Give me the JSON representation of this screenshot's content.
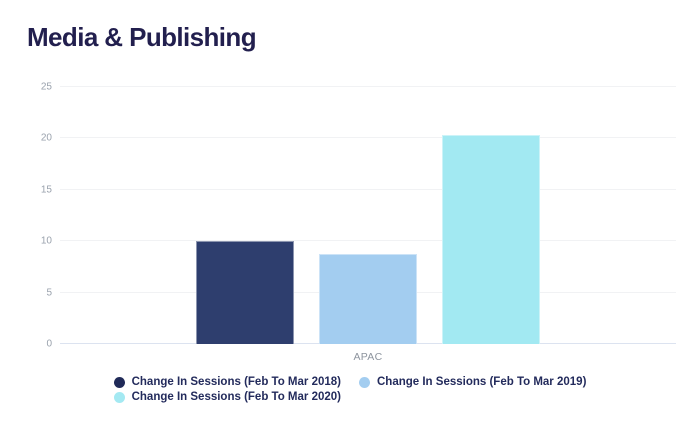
{
  "title": "Media & Publishing",
  "colors": {
    "title_text": "#221f4e",
    "legend_text": "#232b5c",
    "tick_text": "#9aa2ad",
    "category_text": "#8d949e",
    "gridline": "#f1f2f4",
    "axis_line": "#dce3f0",
    "background": "#ffffff"
  },
  "chart_data": {
    "type": "bar",
    "title": "Media & Publishing",
    "categories": [
      "APAC"
    ],
    "series": [
      {
        "name": "Change In Sessions (Feb To Mar 2018)",
        "values": [
          10
        ],
        "color": "#2e3e6e",
        "marker_color": "#202a58"
      },
      {
        "name": "Change In Sessions (Feb To Mar 2019)",
        "values": [
          8.8
        ],
        "color": "#a3cdf0",
        "marker_color": "#a3cdf0"
      },
      {
        "name": "Change In Sessions (Feb To Mar 2020)",
        "values": [
          20.3
        ],
        "color": "#a2e9f2",
        "marker_color": "#a4e9f2"
      }
    ],
    "xlabel": "",
    "ylabel": "",
    "ylim": [
      0,
      25
    ],
    "yticks": [
      0,
      5,
      10,
      15,
      20,
      25
    ],
    "grid": true,
    "legend_position": "bottom",
    "legend_rows": [
      [
        0,
        1
      ],
      [
        2
      ]
    ]
  }
}
